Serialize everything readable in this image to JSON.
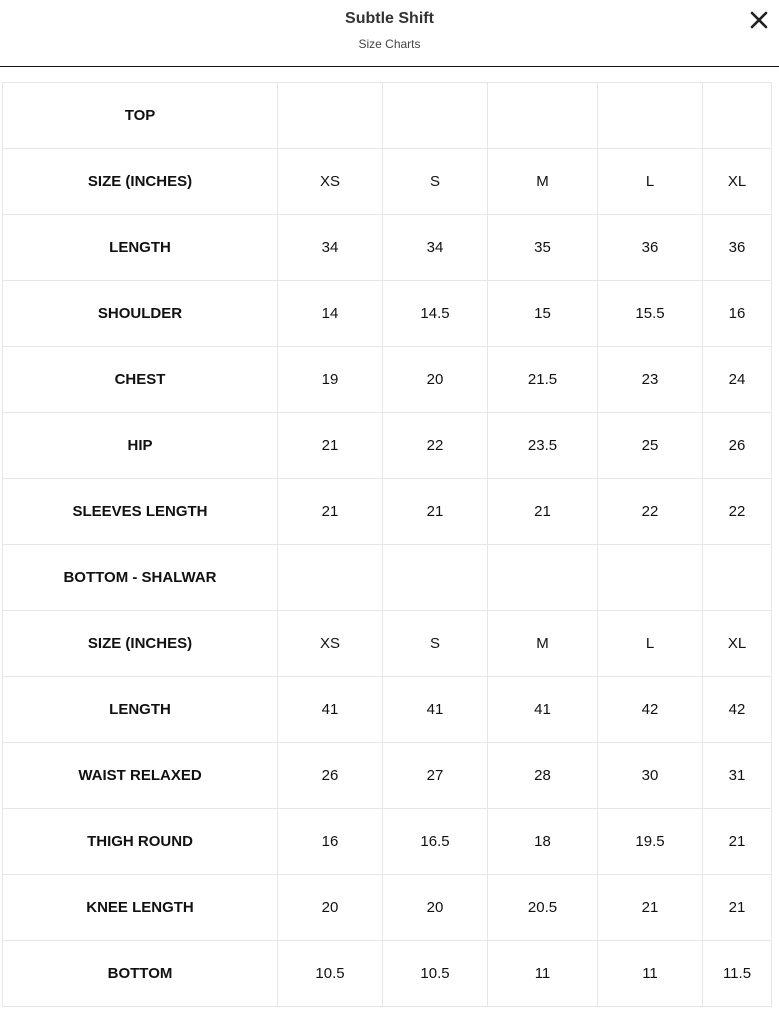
{
  "header": {
    "title": "Subtle Shift",
    "subtitle": "Size Charts",
    "close_icon": "close-x-icon"
  },
  "table": {
    "rows": [
      [
        "TOP",
        "",
        "",
        "",
        "",
        ""
      ],
      [
        "SIZE (INCHES)",
        "XS",
        "S",
        "M",
        "L",
        "XL"
      ],
      [
        "LENGTH",
        "34",
        "34",
        "35",
        "36",
        "36"
      ],
      [
        "SHOULDER",
        "14",
        "14.5",
        "15",
        "15.5",
        "16"
      ],
      [
        "CHEST",
        "19",
        "20",
        "21.5",
        "23",
        "24"
      ],
      [
        "HIP",
        "21",
        "22",
        "23.5",
        "25",
        "26"
      ],
      [
        "SLEEVES LENGTH",
        "21",
        "21",
        "21",
        "22",
        "22"
      ],
      [
        "BOTTOM - SHALWAR",
        "",
        "",
        "",
        "",
        ""
      ],
      [
        "SIZE (INCHES)",
        "XS",
        "S",
        "M",
        "L",
        "XL"
      ],
      [
        "LENGTH",
        "41",
        "41",
        "41",
        "42",
        "42"
      ],
      [
        "WAIST RELAXED",
        "26",
        "27",
        "28",
        "30",
        "31"
      ],
      [
        "THIGH ROUND",
        "16",
        "16.5",
        "18",
        "19.5",
        "21"
      ],
      [
        "KNEE LENGTH",
        "20",
        "20",
        "20.5",
        "21",
        "21"
      ],
      [
        "BOTTOM",
        "10.5",
        "10.5",
        "11",
        "11",
        "11.5"
      ]
    ]
  }
}
